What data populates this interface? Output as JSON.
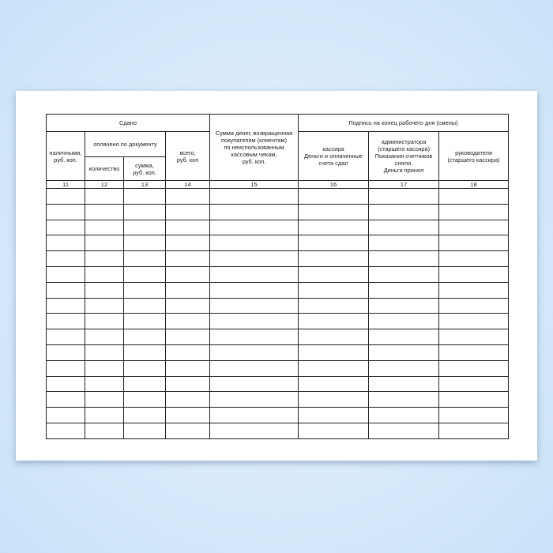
{
  "header": {
    "sdano": "Сдано",
    "cash": "наличными,\nруб. коп.",
    "paid_by_document": "оплачено по документу",
    "quantity": "количество",
    "sum": "сумма,\nруб. коп.",
    "total": "всего,\nруб. коп",
    "refund": "Сумма денег, возвращенная\nпокупателям (клиентам)\nпо неиспользованным\nкассовым чекам,\nруб. коп.",
    "signature": "Подпись на конец рабочего дня (смены)",
    "cashier": "кассира\nДеньги и оплаченные\nсчета сдал",
    "administrator": "администратора\n(старшего кассира)\nПоказания счетчиков\nсняли.\nДеньги принял",
    "manager": "руководителя\n(старшего кассира)"
  },
  "column_numbers": [
    "11",
    "12",
    "13",
    "14",
    "15",
    "16",
    "17",
    "18"
  ]
}
